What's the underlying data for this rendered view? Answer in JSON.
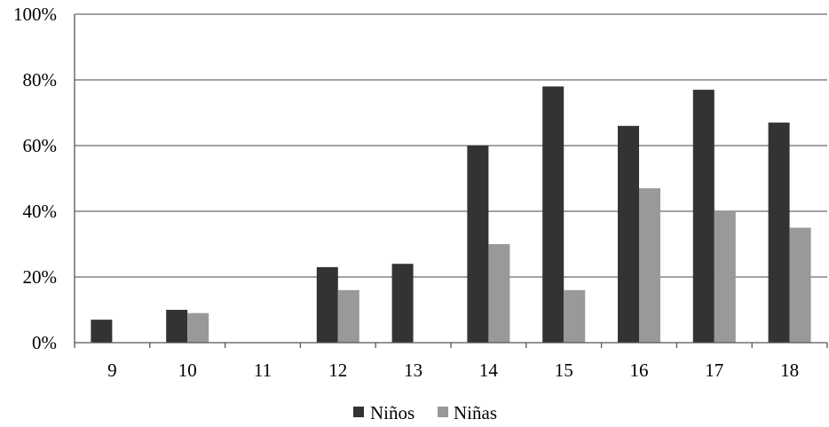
{
  "chart_data": {
    "type": "bar",
    "categories": [
      "9",
      "10",
      "11",
      "12",
      "13",
      "14",
      "15",
      "16",
      "17",
      "18"
    ],
    "series": [
      {
        "name": "Niños",
        "color": "#333333",
        "values": [
          7,
          10,
          0,
          23,
          24,
          60,
          78,
          66,
          77,
          67
        ]
      },
      {
        "name": "Niñas",
        "color": "#999999",
        "values": [
          0,
          9,
          0,
          16,
          0,
          30,
          16,
          47,
          40,
          35
        ]
      }
    ],
    "ylim": [
      0,
      100
    ],
    "yticks": [
      0,
      20,
      40,
      60,
      80,
      100
    ],
    "ytick_labels": [
      "0%",
      "20%",
      "40%",
      "60%",
      "80%",
      "100%"
    ],
    "grid": true,
    "legend_position": "bottom-center",
    "title": "",
    "xlabel": "",
    "ylabel": ""
  }
}
